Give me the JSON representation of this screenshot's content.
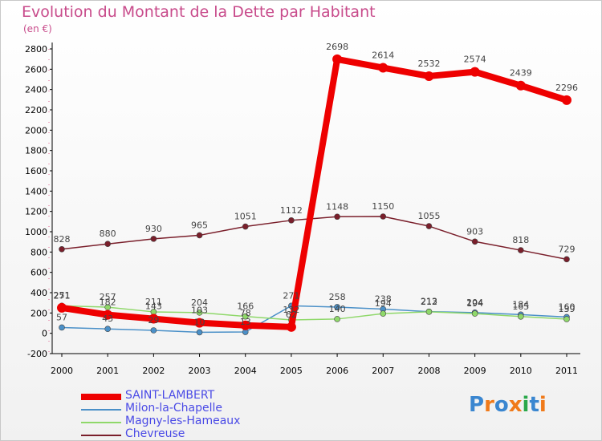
{
  "chart_data": {
    "type": "line",
    "title": "Evolution du Montant de la Dette par Habitant",
    "subtitle": "(en €)",
    "xlabel": "",
    "ylabel": "",
    "categories": [
      "2000",
      "2001",
      "2002",
      "2003",
      "2004",
      "2005",
      "2006",
      "2007",
      "2008",
      "2009",
      "2010",
      "2011"
    ],
    "ylim": [
      -200,
      2800
    ],
    "yticks": [
      -200,
      0,
      200,
      400,
      600,
      800,
      1000,
      1200,
      1400,
      1600,
      1800,
      2000,
      2200,
      2400,
      2600,
      2800
    ],
    "grid": false,
    "legend": "bottom-left",
    "series": [
      {
        "name": "Chevreuse",
        "color": "#7a1f2b",
        "values": [
          828,
          880,
          930,
          965,
          1051,
          1112,
          1148,
          1150,
          1055,
          903,
          818,
          729
        ],
        "labels": [
          "828",
          "880",
          "930",
          "965",
          "1051",
          "1112",
          "1148",
          "1150",
          "1055",
          "903",
          "818",
          "729"
        ]
      },
      {
        "name": "Milon-la-Chapelle",
        "color": "#4a90c8",
        "values": [
          57,
          43,
          29,
          10,
          13,
          271,
          258,
          238,
          213,
          204,
          184,
          160
        ],
        "labels": [
          "57",
          "43",
          "29",
          "10",
          "13",
          "271",
          "258",
          "238",
          "213",
          "204",
          "184",
          "160"
        ]
      },
      {
        "name": "Magny-les-Hameaux",
        "color": "#8fd86a",
        "values": [
          271,
          257,
          211,
          204,
          166,
          132,
          140,
          194,
          212,
          194,
          165,
          139
        ],
        "labels": [
          "271",
          "257",
          "211",
          "204",
          "166",
          "132",
          "140",
          "194",
          "212",
          "194",
          "165",
          "139"
        ]
      },
      {
        "name": "SAINT-LAMBERT",
        "color": "#ee0000",
        "values": [
          251,
          182,
          143,
          103,
          78,
          62,
          2698,
          2614,
          2532,
          2574,
          2439,
          2296
        ],
        "labels": [
          "251",
          "182",
          "143",
          "103",
          "78",
          "62",
          "2698",
          "2614",
          "2532",
          "2574",
          "2439",
          "2296"
        ]
      }
    ]
  },
  "legend": {
    "items": [
      {
        "name": "SAINT-LAMBERT",
        "color": "#ee0000",
        "weight": "8"
      },
      {
        "name": "Milon-la-Chapelle",
        "color": "#4a90c8",
        "weight": "2"
      },
      {
        "name": "Magny-les-Hameaux",
        "color": "#8fd86a",
        "weight": "2"
      },
      {
        "name": "Chevreuse",
        "color": "#7a1f2b",
        "weight": "2"
      }
    ]
  },
  "logo": {
    "letters": [
      "P",
      "r",
      "o",
      "x",
      "i",
      "t",
      "i"
    ],
    "colors": [
      "#3a86d0",
      "#f07a1a",
      "#3a86d0",
      "#f07a1a",
      "#2aa84a",
      "#3a86d0",
      "#f07a1a"
    ]
  }
}
